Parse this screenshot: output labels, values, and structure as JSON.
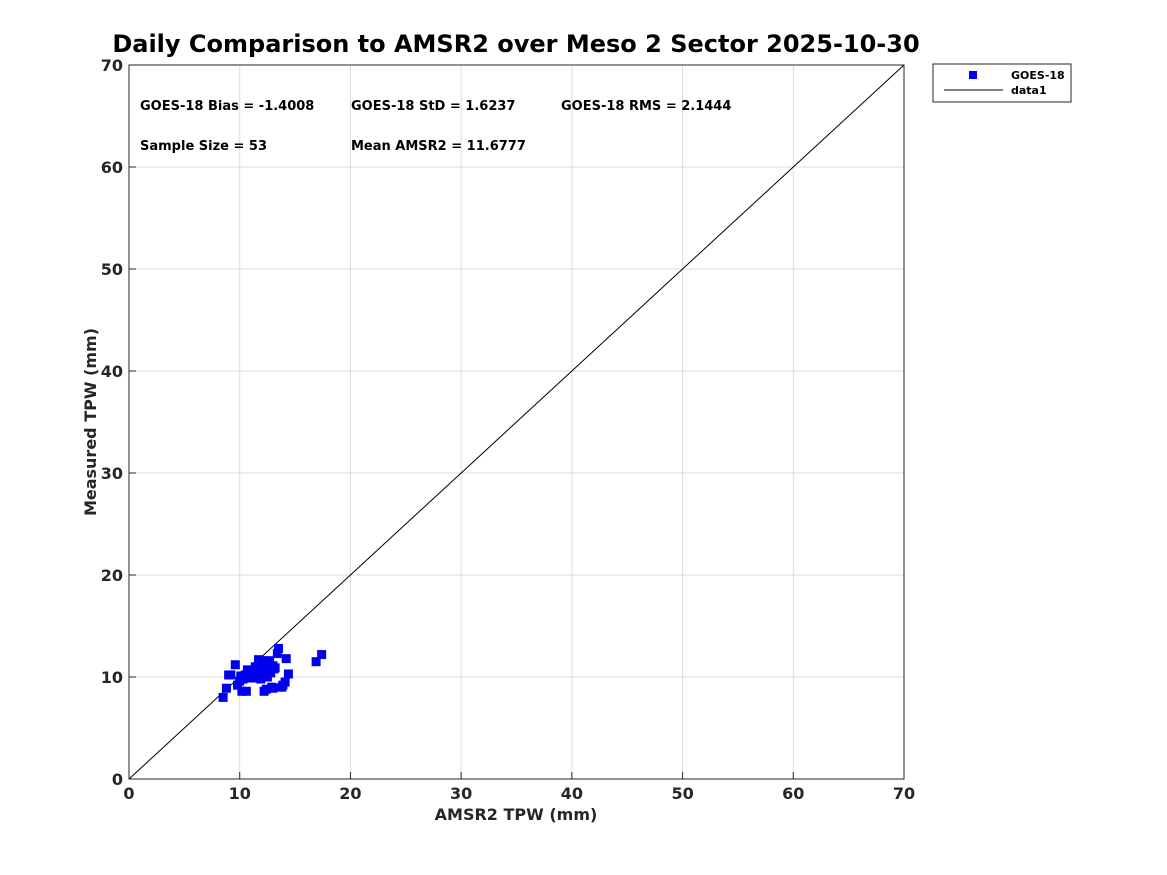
{
  "chart_data": {
    "type": "scatter",
    "title": "Daily Comparison to AMSR2 over Meso 2 Sector 2025-10-30",
    "xlabel": "AMSR2 TPW (mm)",
    "ylabel": "Measured TPW (mm)",
    "xlim": [
      0,
      70
    ],
    "ylim": [
      0,
      70
    ],
    "xticks": [
      "0",
      "10",
      "20",
      "30",
      "40",
      "50",
      "60",
      "70"
    ],
    "yticks": [
      "0",
      "10",
      "20",
      "30",
      "40",
      "50",
      "60",
      "70"
    ],
    "grid": true,
    "legend_position": "outside-top-right",
    "stats": [
      "GOES-18 Bias = -1.4008",
      "GOES-18 StD = 1.6237",
      "GOES-18 RMS = 2.1444",
      "Sample Size = 53",
      "Mean AMSR2 = 11.6777"
    ],
    "series": [
      {
        "name": "GOES-18",
        "kind": "marker",
        "color": "#0000ee",
        "points": [
          [
            8.5,
            8.0
          ],
          [
            8.8,
            8.9
          ],
          [
            9.0,
            10.2
          ],
          [
            9.2,
            10.2
          ],
          [
            9.6,
            11.2
          ],
          [
            9.8,
            9.2
          ],
          [
            10.0,
            9.6
          ],
          [
            10.1,
            10.1
          ],
          [
            10.2,
            8.6
          ],
          [
            10.3,
            9.8
          ],
          [
            10.5,
            10.2
          ],
          [
            10.6,
            8.6
          ],
          [
            10.7,
            10.7
          ],
          [
            10.9,
            10.4
          ],
          [
            11.0,
            10.0
          ],
          [
            11.1,
            10.6
          ],
          [
            11.2,
            10.3
          ],
          [
            11.3,
            9.9
          ],
          [
            11.5,
            10.5
          ],
          [
            11.6,
            10.9
          ],
          [
            11.7,
            11.7
          ],
          [
            11.8,
            10.1
          ],
          [
            11.9,
            10.6
          ],
          [
            12.0,
            11.2
          ],
          [
            12.1,
            10.7
          ],
          [
            12.2,
            8.6
          ],
          [
            12.3,
            10.3
          ],
          [
            12.4,
            11.4
          ],
          [
            12.4,
            8.8
          ],
          [
            12.5,
            10.9
          ],
          [
            12.6,
            11.1
          ],
          [
            12.7,
            10.6
          ],
          [
            12.7,
            11.6
          ],
          [
            12.8,
            10.4
          ],
          [
            12.9,
            9.0
          ],
          [
            13.0,
            8.9
          ],
          [
            13.0,
            11.1
          ],
          [
            13.2,
            10.9
          ],
          [
            13.4,
            12.3
          ],
          [
            13.5,
            12.8
          ],
          [
            13.8,
            9.0
          ],
          [
            13.9,
            9.2
          ],
          [
            14.1,
            9.5
          ],
          [
            14.2,
            11.8
          ],
          [
            14.4,
            10.3
          ],
          [
            16.9,
            11.5
          ],
          [
            17.4,
            12.2
          ],
          [
            11.4,
            11.0
          ],
          [
            12.1,
            11.6
          ],
          [
            10.8,
            9.9
          ],
          [
            11.9,
            9.8
          ],
          [
            12.5,
            10.0
          ],
          [
            13.1,
            10.8
          ]
        ]
      },
      {
        "name": "data1",
        "kind": "line",
        "color": "#000000",
        "points": [
          [
            0,
            0
          ],
          [
            70,
            70
          ]
        ]
      }
    ]
  }
}
